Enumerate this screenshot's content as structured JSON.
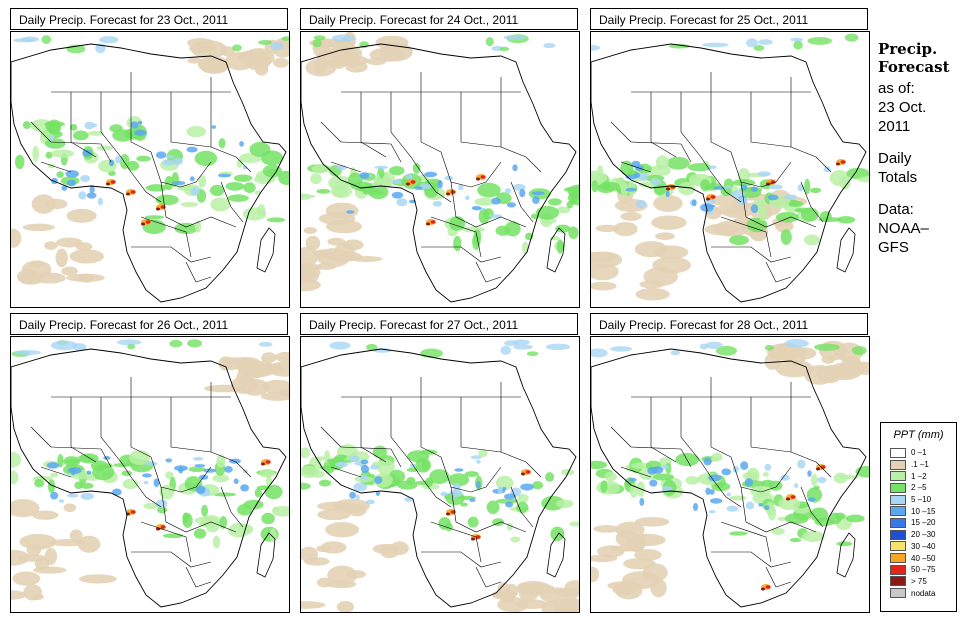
{
  "panels": [
    {
      "title": "Daily Precip. Forecast for  23 Oct., 2011",
      "variant": 0
    },
    {
      "title": "Daily Precip. Forecast for  24 Oct., 2011",
      "variant": 1
    },
    {
      "title": "Daily Precip. Forecast for  25 Oct., 2011",
      "variant": 2
    },
    {
      "title": "Daily Precip. Forecast for  26 Oct., 2011",
      "variant": 3
    },
    {
      "title": "Daily Precip. Forecast for  27 Oct., 2011",
      "variant": 4
    },
    {
      "title": "Daily Precip. Forecast for  28 Oct., 2011",
      "variant": 5
    }
  ],
  "side": {
    "title_line1": "Precip.",
    "title_line2": "Forecast",
    "asof": "as of:",
    "date_line1": "23 Oct.",
    "date_line2": "2011",
    "daily": "Daily",
    "totals": "Totals",
    "data_label": "Data:",
    "source_line1": "NOAA–",
    "source_line2": "GFS"
  },
  "legend": {
    "title": "PPT (mm)",
    "items": [
      {
        "label": "0 –1",
        "color": "#ffffff"
      },
      {
        "label": ".1 –1",
        "color": "#e3d1b5"
      },
      {
        "label": "1 –2",
        "color": "#b9f0a6"
      },
      {
        "label": "2 –5",
        "color": "#74e264"
      },
      {
        "label": "5 –10",
        "color": "#a9d6f4"
      },
      {
        "label": "10 –15",
        "color": "#5aa8f0"
      },
      {
        "label": "15 –20",
        "color": "#3a78e8"
      },
      {
        "label": "20 –30",
        "color": "#1f4fd0"
      },
      {
        "label": "30 –40",
        "color": "#f7e26a"
      },
      {
        "label": "40 –50",
        "color": "#f5a623"
      },
      {
        "label": "50 –75",
        "color": "#e2261c"
      },
      {
        "label": "> 75",
        "color": "#8c1a14"
      },
      {
        "label": "nodata",
        "color": "#c8c8c8"
      }
    ]
  }
}
